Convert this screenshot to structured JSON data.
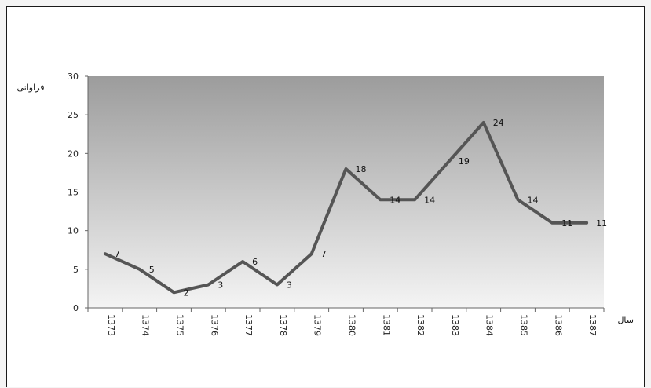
{
  "chart_data": {
    "type": "line",
    "title": "",
    "xlabel": "سال",
    "ylabel": "فراوانی",
    "ylim": [
      0,
      30
    ],
    "yticks": [
      0,
      5,
      10,
      15,
      20,
      25,
      30
    ],
    "grid": false,
    "legend": "none",
    "categories": [
      "1373",
      "1374",
      "1375",
      "1376",
      "1377",
      "1378",
      "1379",
      "1380",
      "1381",
      "1382",
      "1383",
      "1384",
      "1385",
      "1386",
      "1387"
    ],
    "series": [
      {
        "values": [
          7,
          5,
          2,
          3,
          6,
          3,
          7,
          18,
          14,
          14,
          19,
          24,
          14,
          11,
          11
        ]
      }
    ],
    "colors": {
      "line": "#555555",
      "plot_top": "#9c9c9c",
      "plot_bottom": "#f4f4f4"
    }
  }
}
